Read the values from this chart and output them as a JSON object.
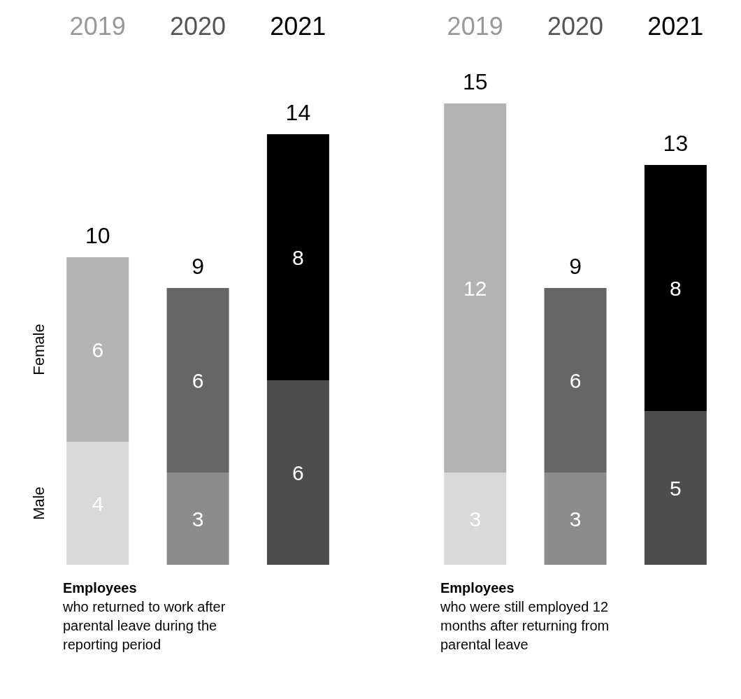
{
  "chart_data": [
    {
      "type": "bar",
      "stacked": true,
      "data_labels": true,
      "title": "Employees",
      "subtitle": "who returned to work after parental leave during the reporting period",
      "categories": [
        "2019",
        "2020",
        "2021"
      ],
      "series": [
        {
          "name": "Male",
          "colors": [
            "#d9d9d9",
            "#8c8c8c",
            "#4d4d4d"
          ],
          "values": [
            4,
            3,
            6
          ]
        },
        {
          "name": "Female",
          "colors": [
            "#b3b3b3",
            "#666666",
            "#000000"
          ],
          "values": [
            6,
            6,
            8
          ]
        }
      ],
      "totals": [
        "10",
        "9",
        "14"
      ]
    },
    {
      "type": "bar",
      "stacked": true,
      "data_labels": true,
      "title": "Employees",
      "subtitle": "who were still employed 12 months after returning from parental leave",
      "categories": [
        "2019",
        "2020",
        "2021"
      ],
      "series": [
        {
          "colors": [
            "#d9d9d9",
            "#8c8c8c",
            "#4d4d4d"
          ],
          "values": [
            3,
            3,
            5
          ]
        },
        {
          "colors": [
            "#b3b3b3",
            "#666666",
            "#000000"
          ],
          "values": [
            12,
            6,
            8
          ]
        }
      ],
      "totals": [
        "15",
        "9",
        "13"
      ]
    }
  ]
}
